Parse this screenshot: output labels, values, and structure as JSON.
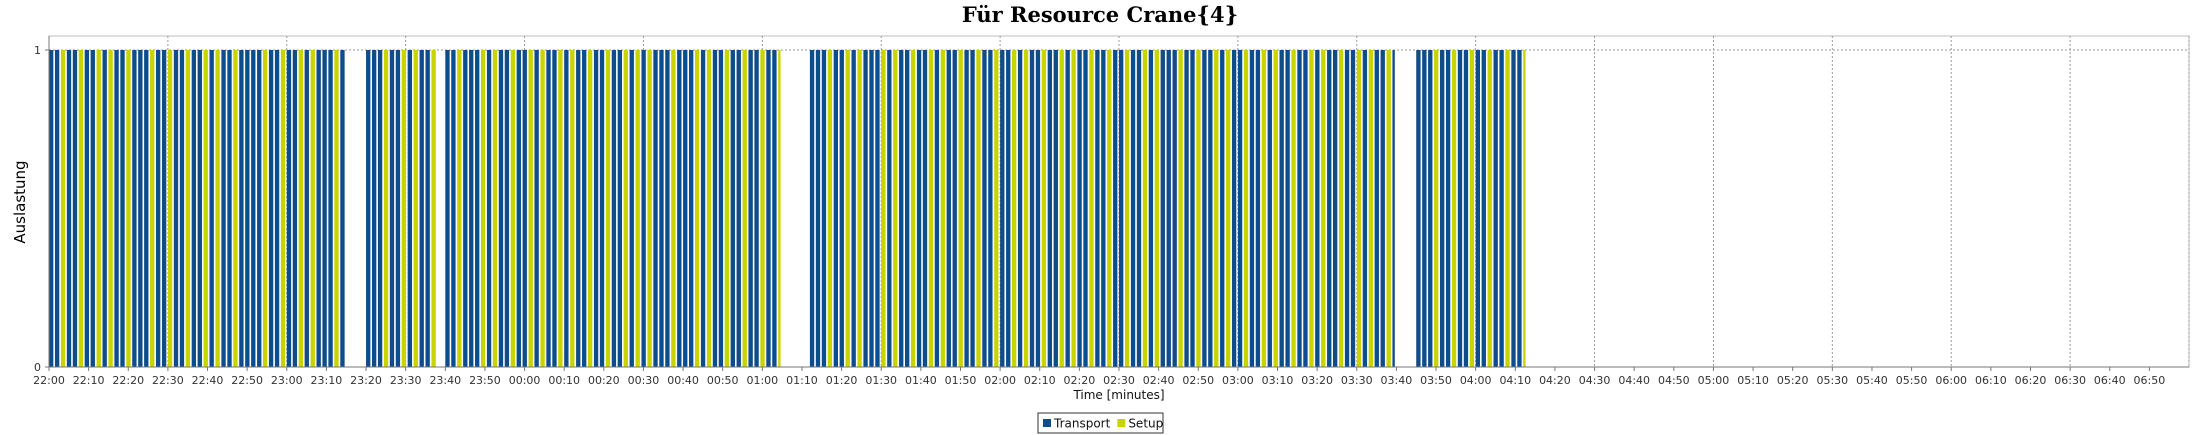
{
  "chart_data": {
    "type": "bar",
    "title": "Für Resource Crane{4}",
    "xlabel": "Time [minutes]",
    "ylabel": "Auslastung",
    "ylim": [
      0,
      1
    ],
    "yticks": [
      "0",
      "1"
    ],
    "xlim": [
      0,
      540
    ],
    "x_tick_interval_minutes": 10,
    "x_ticks": [
      "22:00",
      "22:10",
      "22:20",
      "22:30",
      "22:40",
      "22:50",
      "23:00",
      "23:10",
      "23:20",
      "23:30",
      "23:40",
      "23:50",
      "00:00",
      "00:10",
      "00:20",
      "00:30",
      "00:40",
      "00:50",
      "01:00",
      "01:10",
      "01:20",
      "01:30",
      "01:40",
      "01:50",
      "02:00",
      "02:10",
      "02:20",
      "02:30",
      "02:40",
      "02:50",
      "03:00",
      "03:10",
      "03:20",
      "03:30",
      "03:40",
      "03:50",
      "04:00",
      "04:10",
      "04:20",
      "04:30",
      "04:40",
      "04:50",
      "05:00",
      "05:10",
      "05:20",
      "05:30",
      "05:40",
      "05:50",
      "06:00",
      "06:10",
      "06:20",
      "06:30",
      "06:40",
      "06:50"
    ],
    "grid": true,
    "legend_position": "bottom",
    "series": [
      {
        "name": "Transport",
        "color": "#0d4d8c"
      },
      {
        "name": "Setup",
        "color": "#c8d400"
      }
    ],
    "busy_value": 1,
    "busy_periods": [
      {
        "start": "22:00",
        "end": "23:15"
      },
      {
        "start": "23:20",
        "end": "23:38"
      },
      {
        "start": "23:40",
        "end": "01:05"
      },
      {
        "start": "01:12",
        "end": "03:40"
      },
      {
        "start": "03:45",
        "end": "04:13"
      }
    ],
    "setup_intervals": [
      "22:03",
      "22:07",
      "22:11",
      "22:15",
      "22:19",
      "22:25",
      "22:30",
      "22:34",
      "22:38",
      "22:42",
      "22:46",
      "22:53",
      "22:58",
      "23:03",
      "23:06",
      "23:11",
      "23:24",
      "23:28",
      "23:31",
      "23:36",
      "23:43",
      "23:49",
      "23:52",
      "23:56",
      "00:00",
      "00:04",
      "00:08",
      "00:11",
      "00:15",
      "00:20",
      "00:24",
      "00:28",
      "00:31",
      "00:36",
      "00:42",
      "00:46",
      "00:50",
      "00:54",
      "00:59",
      "01:03",
      "01:16",
      "01:20",
      "01:24",
      "01:29",
      "01:33",
      "01:37",
      "01:41",
      "01:45",
      "01:49",
      "01:53",
      "01:58",
      "02:02",
      "02:06",
      "02:10",
      "02:14",
      "02:18",
      "02:22",
      "02:26",
      "02:31",
      "02:35",
      "02:39",
      "02:45",
      "02:49",
      "02:53",
      "02:57",
      "03:01",
      "03:05",
      "03:09",
      "03:13",
      "03:17",
      "03:21",
      "03:25",
      "03:29",
      "03:33",
      "03:37",
      "03:49",
      "03:54",
      "03:58",
      "04:02",
      "04:07",
      "04:11"
    ]
  }
}
